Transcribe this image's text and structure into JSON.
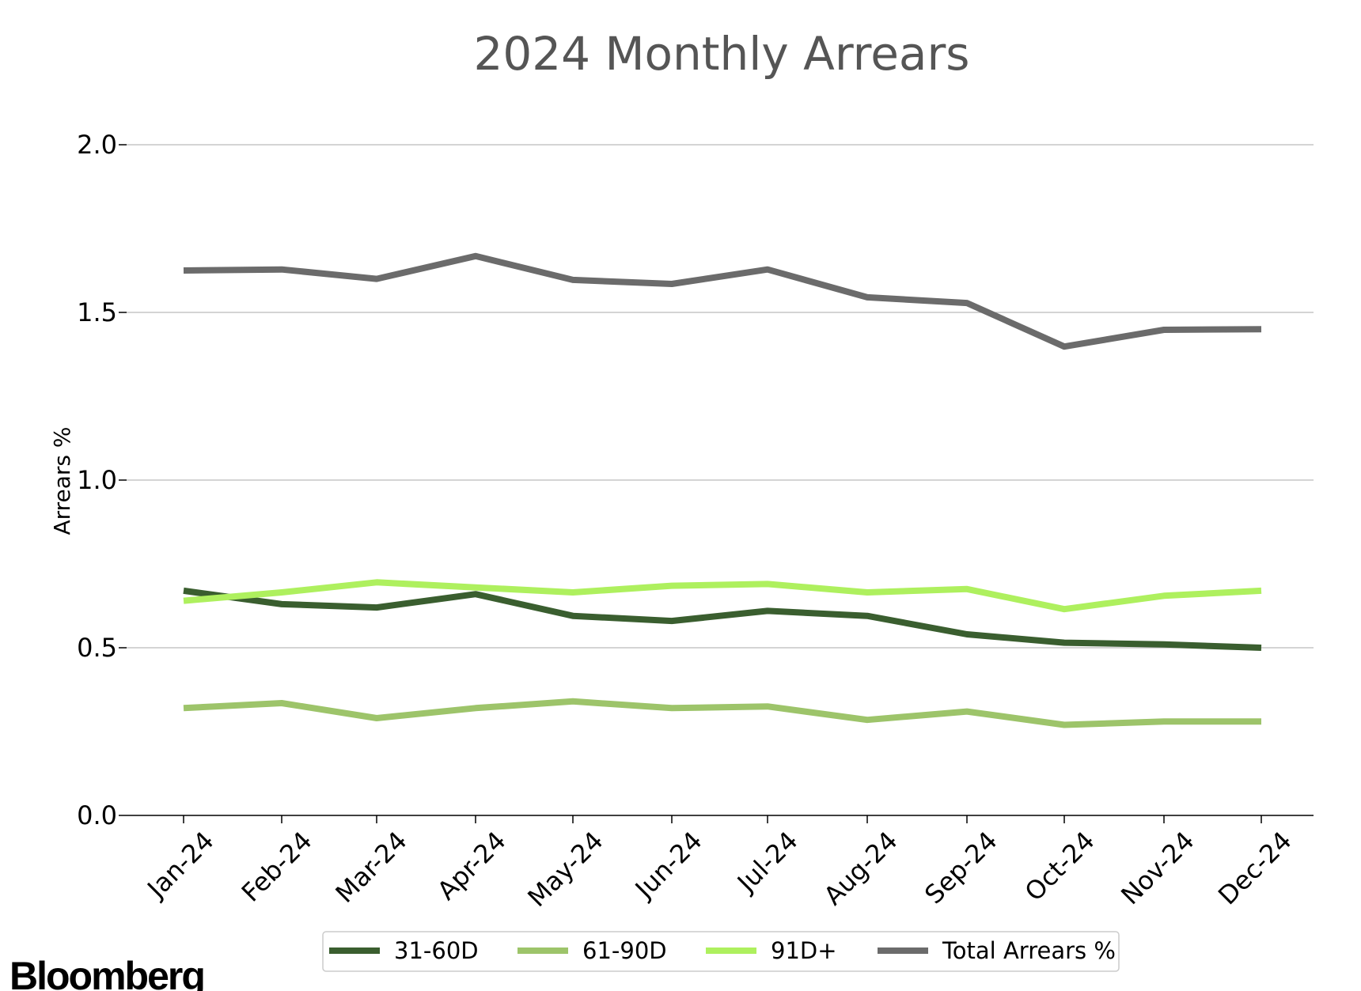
{
  "chart_data": {
    "type": "line",
    "title": "2024 Monthly Arrears",
    "xlabel": "",
    "ylabel": "Arrears %",
    "ylim": [
      0.0,
      2.1
    ],
    "yticks": [
      0.0,
      0.5,
      1.0,
      1.5,
      2.0
    ],
    "ytick_labels": [
      "0.0",
      "0.5",
      "1.0",
      "1.5",
      "2.0"
    ],
    "grid": "horizontal",
    "legend_position": "bottom-center",
    "categories": [
      "Jan-24",
      "Feb-24",
      "Mar-24",
      "Apr-24",
      "May-24",
      "Jun-24",
      "Jul-24",
      "Aug-24",
      "Sep-24",
      "Oct-24",
      "Nov-24",
      "Dec-24"
    ],
    "series": [
      {
        "name": "31-60D",
        "color": "#3a5e2f",
        "values": [
          0.67,
          0.63,
          0.62,
          0.66,
          0.595,
          0.58,
          0.61,
          0.595,
          0.54,
          0.515,
          0.51,
          0.5
        ]
      },
      {
        "name": "61-90D",
        "color": "#9dc46a",
        "values": [
          0.32,
          0.335,
          0.29,
          0.32,
          0.34,
          0.32,
          0.325,
          0.285,
          0.31,
          0.27,
          0.28,
          0.28
        ]
      },
      {
        "name": "91D+",
        "color": "#aef05e",
        "values": [
          0.64,
          0.665,
          0.695,
          0.68,
          0.665,
          0.685,
          0.69,
          0.665,
          0.675,
          0.615,
          0.655,
          0.67
        ]
      },
      {
        "name": "Total Arrears %",
        "color": "#6b6b6b",
        "values": [
          1.625,
          1.628,
          1.6,
          1.668,
          1.597,
          1.585,
          1.628,
          1.545,
          1.528,
          1.398,
          1.448,
          1.45
        ]
      }
    ]
  },
  "branding": {
    "logo_text": "Bloomberg"
  }
}
